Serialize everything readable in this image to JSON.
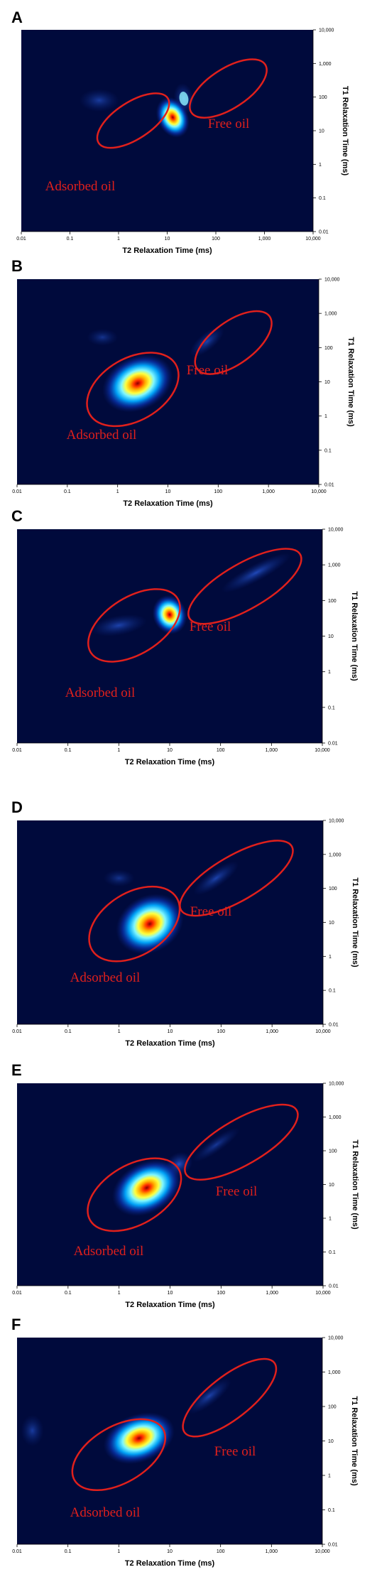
{
  "figure": {
    "xlabel": "T2 Relaxation Time (ms)",
    "ylabel": "T1 Relaxation Time (ms)",
    "x_ticks": [
      "0.01",
      "0.1",
      "1",
      "10",
      "100",
      "1,000",
      "10,000"
    ],
    "y_ticks": [
      "0.01",
      "0.1",
      "1",
      "10",
      "100",
      "1,000",
      "10,000"
    ],
    "colors": {
      "background": "#000a3c",
      "ellipse": "#e0201c",
      "label": "#e0201c"
    }
  },
  "chart_data": [
    {
      "type": "heatmap",
      "panel": "A",
      "xlabel": "T2 Relaxation Time (ms)",
      "ylabel": "T1 Relaxation Time (ms)",
      "x_scale": "log",
      "y_scale": "log",
      "xlim": [
        0.01,
        10000
      ],
      "ylim": [
        0.01,
        10000
      ],
      "peaks": [
        {
          "t2": 13,
          "t1": 25,
          "intensity": 1.0
        },
        {
          "t2": 22,
          "t1": 90,
          "intensity": 0.45
        },
        {
          "t2": 0.4,
          "t1": 80,
          "intensity": 0.12
        }
      ],
      "regions": [
        {
          "label": "Free oil",
          "t2": 180,
          "t1": 180
        },
        {
          "label": "Adsorbed oil",
          "t2": 2,
          "t1": 20
        }
      ]
    },
    {
      "type": "heatmap",
      "panel": "B",
      "xlabel": "T2 Relaxation Time (ms)",
      "ylabel": "T1 Relaxation Time (ms)",
      "x_scale": "log",
      "y_scale": "log",
      "xlim": [
        0.01,
        10000
      ],
      "ylim": [
        0.01,
        10000
      ],
      "peaks": [
        {
          "t2": 2.5,
          "t1": 9,
          "intensity": 1.0
        },
        {
          "t2": 60,
          "t1": 150,
          "intensity": 0.15
        },
        {
          "t2": 0.5,
          "t1": 200,
          "intensity": 0.08
        }
      ],
      "regions": [
        {
          "label": "Free oil",
          "t2": 200,
          "t1": 140
        },
        {
          "label": "Adsorbed oil",
          "t2": 2,
          "t1": 6
        }
      ]
    },
    {
      "type": "heatmap",
      "panel": "C",
      "xlabel": "T2 Relaxation Time (ms)",
      "ylabel": "T1 Relaxation Time (ms)",
      "x_scale": "log",
      "y_scale": "log",
      "xlim": [
        0.01,
        10000
      ],
      "ylim": [
        0.01,
        10000
      ],
      "peaks": [
        {
          "t2": 10,
          "t1": 40,
          "intensity": 1.0
        },
        {
          "t2": 500,
          "t1": 600,
          "intensity": 0.18
        },
        {
          "t2": 1,
          "t1": 20,
          "intensity": 0.15
        }
      ],
      "regions": [
        {
          "label": "Free oil",
          "t2": 300,
          "t1": 250
        },
        {
          "label": "Adsorbed oil",
          "t2": 2,
          "t1": 20
        }
      ]
    },
    {
      "type": "heatmap",
      "panel": "D",
      "xlabel": "T2 Relaxation Time (ms)",
      "ylabel": "T1 Relaxation Time (ms)",
      "x_scale": "log",
      "y_scale": "log",
      "xlim": [
        0.01,
        10000
      ],
      "ylim": [
        0.01,
        10000
      ],
      "peaks": [
        {
          "t2": 4,
          "t1": 9,
          "intensity": 1.0
        },
        {
          "t2": 80,
          "t1": 200,
          "intensity": 0.15
        },
        {
          "t2": 1,
          "t1": 200,
          "intensity": 0.08
        }
      ],
      "regions": [
        {
          "label": "Free oil",
          "t2": 200,
          "t1": 200
        },
        {
          "label": "Adsorbed oil",
          "t2": 2,
          "t1": 9
        }
      ]
    },
    {
      "type": "heatmap",
      "panel": "E",
      "xlabel": "T2 Relaxation Time (ms)",
      "ylabel": "T1 Relaxation Time (ms)",
      "x_scale": "log",
      "y_scale": "log",
      "xlim": [
        0.01,
        10000
      ],
      "ylim": [
        0.01,
        10000
      ],
      "peaks": [
        {
          "t2": 3.5,
          "t1": 8,
          "intensity": 1.0
        },
        {
          "t2": 15,
          "t1": 40,
          "intensity": 0.25
        },
        {
          "t2": 80,
          "t1": 150,
          "intensity": 0.1
        }
      ],
      "regions": [
        {
          "label": "Free oil",
          "t2": 250,
          "t1": 180
        },
        {
          "label": "Adsorbed oil",
          "t2": 2,
          "t1": 5
        }
      ]
    },
    {
      "type": "heatmap",
      "panel": "F",
      "xlabel": "T2 Relaxation Time (ms)",
      "ylabel": "T1 Relaxation Time (ms)",
      "x_scale": "log",
      "y_scale": "log",
      "xlim": [
        0.01,
        10000
      ],
      "ylim": [
        0.01,
        10000
      ],
      "peaks": [
        {
          "t2": 2.5,
          "t1": 12,
          "intensity": 1.0
        },
        {
          "t2": 60,
          "t1": 200,
          "intensity": 0.15
        },
        {
          "t2": 0.02,
          "t1": 20,
          "intensity": 0.12
        }
      ],
      "regions": [
        {
          "label": "Free oil",
          "t2": 150,
          "t1": 180
        },
        {
          "label": "Adsorbed oil",
          "t2": 1,
          "t1": 4
        }
      ]
    }
  ]
}
